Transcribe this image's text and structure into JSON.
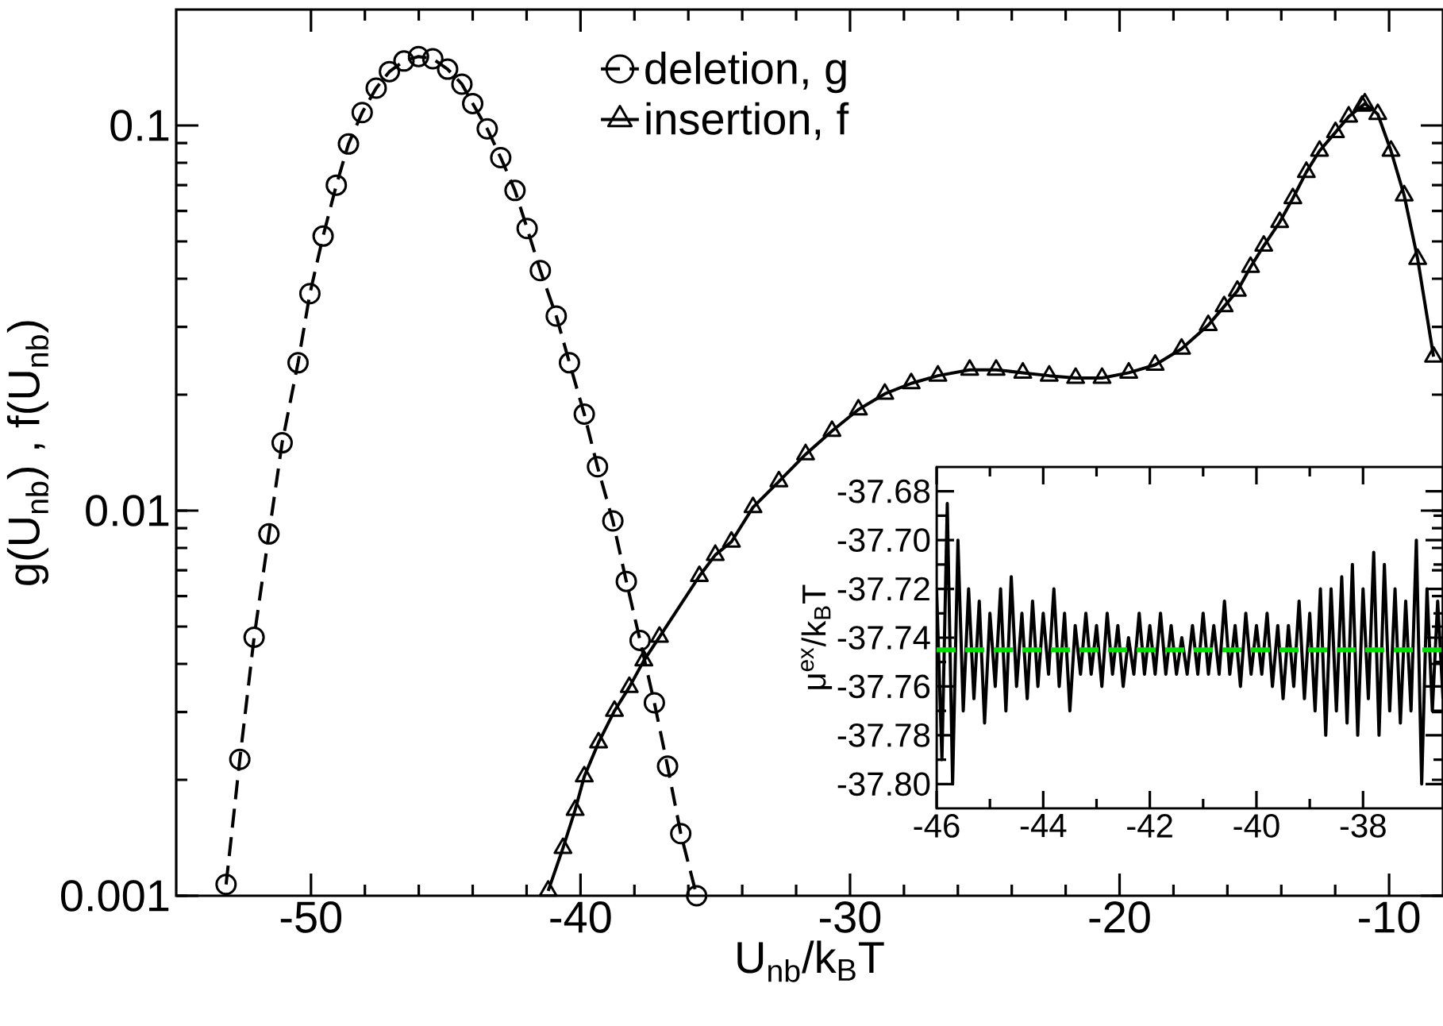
{
  "chart_data": [
    {
      "type": "line",
      "xlabel": "U$_{nb}$/k$_{B}$T",
      "ylabel": "g(U$_{nb}$) , f(U$_{nb}$)",
      "log": "y",
      "xlim": [
        -55,
        -8
      ],
      "ylim": [
        0.001,
        0.2
      ],
      "xticks": [
        -50,
        -40,
        -30,
        -20,
        -10
      ],
      "yticks": [
        0.001,
        0.01,
        0.1
      ],
      "grid": false,
      "legend": "top",
      "series": [
        {
          "name": "deletion, g",
          "color": "#000000",
          "marker": "circle",
          "line_style": "dashed",
          "x": [
            -53.15,
            -52.64,
            -52.11,
            -51.56,
            -51.07,
            -50.48,
            -50.04,
            -49.55,
            -49.06,
            -48.61,
            -48.1,
            -47.58,
            -47.09,
            -46.55,
            -46.01,
            -45.48,
            -44.93,
            -44.4,
            -44.0,
            -43.46,
            -42.96,
            -42.43,
            -41.98,
            -41.49,
            -40.9,
            -40.41,
            -39.86,
            -39.37,
            -38.8,
            -38.3,
            -37.79,
            -37.26,
            -36.77,
            -36.28,
            -35.69
          ],
          "values": [
            0.00107,
            0.00226,
            0.00469,
            0.0087,
            0.015,
            0.0242,
            0.0366,
            0.0516,
            0.07,
            0.0895,
            0.108,
            0.125,
            0.138,
            0.147,
            0.151,
            0.149,
            0.14,
            0.128,
            0.114,
            0.098,
            0.0825,
            0.0678,
            0.054,
            0.042,
            0.032,
            0.0242,
            0.0178,
            0.013,
            0.0094,
            0.00655,
            0.0046,
            0.00317,
            0.00217,
            0.00145,
            0.001
          ]
        },
        {
          "name": "insertion, f",
          "color": "#000000",
          "marker": "triangle",
          "line_style": "solid",
          "x": [
            -41.2,
            -40.65,
            -40.2,
            -39.86,
            -39.33,
            -38.74,
            -38.19,
            -37.65,
            -37.07,
            -35.59,
            -35.0,
            -34.4,
            -33.6,
            -32.64,
            -31.65,
            -30.67,
            -29.69,
            -28.71,
            -27.73,
            -26.74,
            -25.56,
            -24.58,
            -23.59,
            -22.61,
            -21.63,
            -20.65,
            -19.66,
            -18.68,
            -17.7,
            -16.71,
            -16.12,
            -15.63,
            -15.14,
            -14.65,
            -14.06,
            -13.57,
            -13.07,
            -12.58,
            -11.99,
            -11.5,
            -11.0,
            -10.9,
            -10.42,
            -9.93,
            -9.44,
            -8.94,
            -8.35
          ],
          "values": [
            0.00103,
            0.00133,
            0.00167,
            0.00204,
            0.0025,
            0.00302,
            0.00348,
            0.00408,
            0.0047,
            0.00676,
            0.00767,
            0.0083,
            0.0102,
            0.0119,
            0.014,
            0.0161,
            0.0183,
            0.0201,
            0.0214,
            0.0224,
            0.0232,
            0.0232,
            0.0228,
            0.0224,
            0.0221,
            0.0221,
            0.0228,
            0.0239,
            0.0263,
            0.0303,
            0.0339,
            0.0372,
            0.0429,
            0.0487,
            0.0561,
            0.0647,
            0.0757,
            0.0859,
            0.096,
            0.1054,
            0.1124,
            0.114,
            0.107,
            0.0859,
            0.0658,
            0.045,
            0.0251
          ]
        }
      ]
    },
    {
      "type": "line",
      "ylabel": "μ$^{ex}$/k$_{B}$T",
      "xlim": [
        -46,
        -36.5
      ],
      "ylim": [
        -37.81,
        -37.67
      ],
      "xticks": [
        -46,
        -44,
        -42,
        -40,
        -38
      ],
      "yticks": [
        -37.68,
        {
          "value": -37.7,
          "label": "-37.70"
        },
        -37.72,
        -37.74,
        -37.76,
        -37.78,
        {
          "value": -37.8,
          "label": "-37.80"
        }
      ],
      "grid": false,
      "legend": false,
      "ref_lines": [
        {
          "axis": "y",
          "value": -37.745,
          "color": "#00e000",
          "line_style": "dashed"
        }
      ],
      "series": [
        {
          "color": "#000000",
          "marker": "none",
          "line_style": "solid",
          "x": [
            -46.0,
            -45.9,
            -45.8,
            -45.7,
            -45.6,
            -45.5,
            -45.4,
            -45.3,
            -45.2,
            -45.1,
            -45.0,
            -44.9,
            -44.8,
            -44.7,
            -44.6,
            -44.5,
            -44.4,
            -44.3,
            -44.2,
            -44.1,
            -44.0,
            -43.9,
            -43.8,
            -43.7,
            -43.6,
            -43.5,
            -43.4,
            -43.3,
            -43.2,
            -43.1,
            -43.0,
            -42.9,
            -42.8,
            -42.7,
            -42.6,
            -42.5,
            -42.4,
            -42.3,
            -42.2,
            -42.1,
            -42.0,
            -41.9,
            -41.8,
            -41.7,
            -41.6,
            -41.5,
            -41.4,
            -41.3,
            -41.2,
            -41.1,
            -41.0,
            -40.9,
            -40.8,
            -40.7,
            -40.6,
            -40.5,
            -40.4,
            -40.3,
            -40.2,
            -40.1,
            -40.0,
            -39.9,
            -39.8,
            -39.7,
            -39.6,
            -39.5,
            -39.4,
            -39.3,
            -39.2,
            -39.1,
            -39.0,
            -38.9,
            -38.8,
            -38.7,
            -38.6,
            -38.5,
            -38.4,
            -38.3,
            -38.2,
            -38.1,
            -38.0,
            -37.9,
            -37.8,
            -37.7,
            -37.6,
            -37.5,
            -37.4,
            -37.3,
            -37.2,
            -37.1,
            -37.0,
            -36.9,
            -36.8,
            -36.7,
            -36.6,
            -36.5
          ],
          "values": [
            -37.72,
            -37.79,
            -37.685,
            -37.8,
            -37.7,
            -37.77,
            -37.72,
            -37.765,
            -37.725,
            -37.775,
            -37.73,
            -37.76,
            -37.72,
            -37.77,
            -37.715,
            -37.76,
            -37.73,
            -37.765,
            -37.725,
            -37.76,
            -37.73,
            -37.755,
            -37.72,
            -37.76,
            -37.73,
            -37.77,
            -37.735,
            -37.755,
            -37.73,
            -37.755,
            -37.735,
            -37.76,
            -37.73,
            -37.755,
            -37.735,
            -37.76,
            -37.74,
            -37.755,
            -37.73,
            -37.755,
            -37.735,
            -37.755,
            -37.73,
            -37.755,
            -37.735,
            -37.755,
            -37.74,
            -37.755,
            -37.735,
            -37.755,
            -37.73,
            -37.755,
            -37.735,
            -37.755,
            -37.725,
            -37.755,
            -37.735,
            -37.76,
            -37.73,
            -37.755,
            -37.735,
            -37.755,
            -37.73,
            -37.76,
            -37.735,
            -37.765,
            -37.735,
            -37.76,
            -37.725,
            -37.765,
            -37.73,
            -37.77,
            -37.72,
            -37.78,
            -37.72,
            -37.77,
            -37.715,
            -37.775,
            -37.71,
            -37.78,
            -37.72,
            -37.765,
            -37.705,
            -37.78,
            -37.71,
            -37.77,
            -37.72,
            -37.775,
            -37.725,
            -37.77,
            -37.7,
            -37.8,
            -37.72,
            -37.77,
            -37.725,
            -37.765
          ]
        }
      ]
    }
  ]
}
